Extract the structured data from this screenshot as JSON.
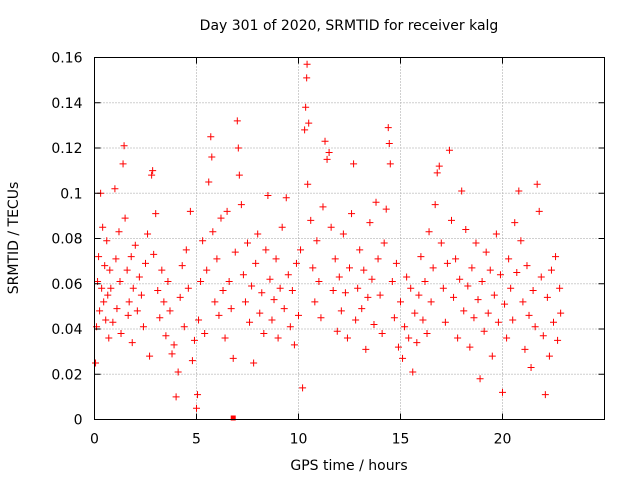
{
  "chart_data": {
    "type": "scatter",
    "title": "Day 301 of 2020, SRMTID for receiver kalg",
    "xlabel": "GPS time / hours",
    "ylabel": "SRMTID / TECUs",
    "xlim": [
      0,
      25
    ],
    "ylim": [
      0,
      0.16
    ],
    "xticks": [
      0,
      5,
      10,
      15,
      20
    ],
    "xtick_labels": [
      "0",
      "5",
      "10",
      "15",
      "20"
    ],
    "yticks": [
      0,
      0.02,
      0.04,
      0.06,
      0.08,
      0.1,
      0.12,
      0.14,
      0.16
    ],
    "ytick_labels": [
      "0",
      "0.02",
      "0.04",
      "0.06",
      "0.08",
      "0.1",
      "0.12",
      "0.14",
      "0.16"
    ],
    "grid": true,
    "marker": "plus",
    "series": [
      {
        "name": "SRMTID",
        "color": "#ff0000",
        "points": [
          [
            0.05,
            0.025
          ],
          [
            0.1,
            0.041
          ],
          [
            0.15,
            0.061
          ],
          [
            0.2,
            0.072
          ],
          [
            0.25,
            0.048
          ],
          [
            0.3,
            0.1
          ],
          [
            0.35,
            0.058
          ],
          [
            0.4,
            0.085
          ],
          [
            0.45,
            0.052
          ],
          [
            0.5,
            0.068
          ],
          [
            0.55,
            0.044
          ],
          [
            0.6,
            0.079
          ],
          [
            0.65,
            0.055
          ],
          [
            0.7,
            0.036
          ],
          [
            0.75,
            0.066
          ],
          [
            0.8,
            0.058
          ],
          [
            0.9,
            0.043
          ],
          [
            1.0,
            0.102
          ],
          [
            1.05,
            0.071
          ],
          [
            1.1,
            0.049
          ],
          [
            1.2,
            0.083
          ],
          [
            1.25,
            0.061
          ],
          [
            1.3,
            0.038
          ],
          [
            1.4,
            0.113
          ],
          [
            1.45,
            0.121
          ],
          [
            1.5,
            0.089
          ],
          [
            1.6,
            0.066
          ],
          [
            1.65,
            0.046
          ],
          [
            1.7,
            0.052
          ],
          [
            1.8,
            0.072
          ],
          [
            1.85,
            0.034
          ],
          [
            1.9,
            0.058
          ],
          [
            2.0,
            0.077
          ],
          [
            2.1,
            0.048
          ],
          [
            2.2,
            0.063
          ],
          [
            2.3,
            0.055
          ],
          [
            2.4,
            0.041
          ],
          [
            2.5,
            0.069
          ],
          [
            2.6,
            0.082
          ],
          [
            2.7,
            0.028
          ],
          [
            2.8,
            0.108
          ],
          [
            2.85,
            0.11
          ],
          [
            2.9,
            0.073
          ],
          [
            3.0,
            0.091
          ],
          [
            3.1,
            0.057
          ],
          [
            3.2,
            0.045
          ],
          [
            3.3,
            0.066
          ],
          [
            3.4,
            0.052
          ],
          [
            3.5,
            0.037
          ],
          [
            3.6,
            0.061
          ],
          [
            3.7,
            0.048
          ],
          [
            3.8,
            0.029
          ],
          [
            3.9,
            0.033
          ],
          [
            4.0,
            0.01
          ],
          [
            4.1,
            0.021
          ],
          [
            4.2,
            0.054
          ],
          [
            4.3,
            0.068
          ],
          [
            4.4,
            0.041
          ],
          [
            4.5,
            0.075
          ],
          [
            4.6,
            0.058
          ],
          [
            4.7,
            0.092
          ],
          [
            4.8,
            0.026
          ],
          [
            4.9,
            0.035
          ],
          [
            5.0,
            0.005
          ],
          [
            5.05,
            0.011
          ],
          [
            5.1,
            0.044
          ],
          [
            5.2,
            0.061
          ],
          [
            5.3,
            0.079
          ],
          [
            5.4,
            0.038
          ],
          [
            5.5,
            0.066
          ],
          [
            5.6,
            0.105
          ],
          [
            5.7,
            0.125
          ],
          [
            5.75,
            0.116
          ],
          [
            5.8,
            0.083
          ],
          [
            5.9,
            0.052
          ],
          [
            6.0,
            0.071
          ],
          [
            6.1,
            0.046
          ],
          [
            6.2,
            0.089
          ],
          [
            6.3,
            0.057
          ],
          [
            6.4,
            0.036
          ],
          [
            6.5,
            0.092
          ],
          [
            6.6,
            0.061
          ],
          [
            6.7,
            0.049
          ],
          [
            6.8,
            0.027
          ],
          [
            6.9,
            0.074
          ],
          [
            7.0,
            0.132
          ],
          [
            7.05,
            0.12
          ],
          [
            7.1,
            0.108
          ],
          [
            7.2,
            0.095
          ],
          [
            7.3,
            0.064
          ],
          [
            7.4,
            0.052
          ],
          [
            7.5,
            0.078
          ],
          [
            7.6,
            0.043
          ],
          [
            7.7,
            0.059
          ],
          [
            7.8,
            0.025
          ],
          [
            7.9,
            0.069
          ],
          [
            8.0,
            0.082
          ],
          [
            8.1,
            0.047
          ],
          [
            8.2,
            0.056
          ],
          [
            8.3,
            0.038
          ],
          [
            8.4,
            0.075
          ],
          [
            8.5,
            0.099
          ],
          [
            8.6,
            0.062
          ],
          [
            8.7,
            0.044
          ],
          [
            8.8,
            0.053
          ],
          [
            8.9,
            0.071
          ],
          [
            9.0,
            0.036
          ],
          [
            9.1,
            0.058
          ],
          [
            9.2,
            0.085
          ],
          [
            9.3,
            0.049
          ],
          [
            9.4,
            0.098
          ],
          [
            9.5,
            0.064
          ],
          [
            9.6,
            0.041
          ],
          [
            9.7,
            0.057
          ],
          [
            9.8,
            0.033
          ],
          [
            9.9,
            0.069
          ],
          [
            10.0,
            0.046
          ],
          [
            10.1,
            0.075
          ],
          [
            10.2,
            0.014
          ],
          [
            10.3,
            0.128
          ],
          [
            10.35,
            0.138
          ],
          [
            10.4,
            0.151
          ],
          [
            10.42,
            0.157
          ],
          [
            10.45,
            0.104
          ],
          [
            10.5,
            0.131
          ],
          [
            10.6,
            0.088
          ],
          [
            10.7,
            0.067
          ],
          [
            10.8,
            0.052
          ],
          [
            10.9,
            0.079
          ],
          [
            11.0,
            0.061
          ],
          [
            11.1,
            0.045
          ],
          [
            11.2,
            0.094
          ],
          [
            11.3,
            0.123
          ],
          [
            11.4,
            0.115
          ],
          [
            11.5,
            0.118
          ],
          [
            11.6,
            0.085
          ],
          [
            11.7,
            0.057
          ],
          [
            11.8,
            0.071
          ],
          [
            11.9,
            0.039
          ],
          [
            12.0,
            0.063
          ],
          [
            12.1,
            0.048
          ],
          [
            12.2,
            0.082
          ],
          [
            12.3,
            0.056
          ],
          [
            12.4,
            0.036
          ],
          [
            12.5,
            0.067
          ],
          [
            12.6,
            0.091
          ],
          [
            12.7,
            0.113
          ],
          [
            12.8,
            0.044
          ],
          [
            12.9,
            0.058
          ],
          [
            13.0,
            0.075
          ],
          [
            13.1,
            0.049
          ],
          [
            13.2,
            0.066
          ],
          [
            13.3,
            0.031
          ],
          [
            13.4,
            0.054
          ],
          [
            13.5,
            0.087
          ],
          [
            13.6,
            0.062
          ],
          [
            13.7,
            0.042
          ],
          [
            13.8,
            0.096
          ],
          [
            13.9,
            0.071
          ],
          [
            14.0,
            0.055
          ],
          [
            14.1,
            0.038
          ],
          [
            14.2,
            0.078
          ],
          [
            14.3,
            0.093
          ],
          [
            14.4,
            0.129
          ],
          [
            14.45,
            0.122
          ],
          [
            14.5,
            0.113
          ],
          [
            14.6,
            0.061
          ],
          [
            14.7,
            0.045
          ],
          [
            14.8,
            0.069
          ],
          [
            14.9,
            0.032
          ],
          [
            15.0,
            0.052
          ],
          [
            15.1,
            0.027
          ],
          [
            15.2,
            0.041
          ],
          [
            15.3,
            0.063
          ],
          [
            15.4,
            0.036
          ],
          [
            15.5,
            0.058
          ],
          [
            15.6,
            0.021
          ],
          [
            15.7,
            0.047
          ],
          [
            15.8,
            0.034
          ],
          [
            15.9,
            0.055
          ],
          [
            16.0,
            0.072
          ],
          [
            16.1,
            0.044
          ],
          [
            16.2,
            0.061
          ],
          [
            16.3,
            0.038
          ],
          [
            16.4,
            0.083
          ],
          [
            16.5,
            0.052
          ],
          [
            16.6,
            0.067
          ],
          [
            16.7,
            0.095
          ],
          [
            16.8,
            0.109
          ],
          [
            16.9,
            0.112
          ],
          [
            17.0,
            0.078
          ],
          [
            17.1,
            0.058
          ],
          [
            17.2,
            0.043
          ],
          [
            17.3,
            0.069
          ],
          [
            17.4,
            0.119
          ],
          [
            17.5,
            0.088
          ],
          [
            17.6,
            0.054
          ],
          [
            17.7,
            0.071
          ],
          [
            17.8,
            0.036
          ],
          [
            17.9,
            0.062
          ],
          [
            18.0,
            0.101
          ],
          [
            18.1,
            0.048
          ],
          [
            18.2,
            0.084
          ],
          [
            18.3,
            0.059
          ],
          [
            18.4,
            0.032
          ],
          [
            18.5,
            0.067
          ],
          [
            18.6,
            0.045
          ],
          [
            18.7,
            0.078
          ],
          [
            18.8,
            0.053
          ],
          [
            18.9,
            0.018
          ],
          [
            19.0,
            0.061
          ],
          [
            19.1,
            0.039
          ],
          [
            19.2,
            0.074
          ],
          [
            19.3,
            0.047
          ],
          [
            19.4,
            0.066
          ],
          [
            19.5,
            0.028
          ],
          [
            19.6,
            0.055
          ],
          [
            19.7,
            0.082
          ],
          [
            19.8,
            0.043
          ],
          [
            19.9,
            0.064
          ],
          [
            20.0,
            0.012
          ],
          [
            20.1,
            0.051
          ],
          [
            20.2,
            0.036
          ],
          [
            20.3,
            0.071
          ],
          [
            20.4,
            0.058
          ],
          [
            20.5,
            0.044
          ],
          [
            20.6,
            0.087
          ],
          [
            20.7,
            0.065
          ],
          [
            20.8,
            0.101
          ],
          [
            20.9,
            0.079
          ],
          [
            21.0,
            0.052
          ],
          [
            21.1,
            0.031
          ],
          [
            21.2,
            0.068
          ],
          [
            21.3,
            0.046
          ],
          [
            21.4,
            0.023
          ],
          [
            21.5,
            0.057
          ],
          [
            21.6,
            0.041
          ],
          [
            21.7,
            0.104
          ],
          [
            21.8,
            0.092
          ],
          [
            21.9,
            0.063
          ],
          [
            22.0,
            0.037
          ],
          [
            22.1,
            0.011
          ],
          [
            22.2,
            0.054
          ],
          [
            22.3,
            0.028
          ],
          [
            22.4,
            0.066
          ],
          [
            22.5,
            0.043
          ],
          [
            22.6,
            0.072
          ],
          [
            22.7,
            0.035
          ],
          [
            22.8,
            0.058
          ],
          [
            22.85,
            0.047
          ]
        ]
      }
    ],
    "zero_markers": [
      [
        6.8,
        0
      ]
    ]
  }
}
